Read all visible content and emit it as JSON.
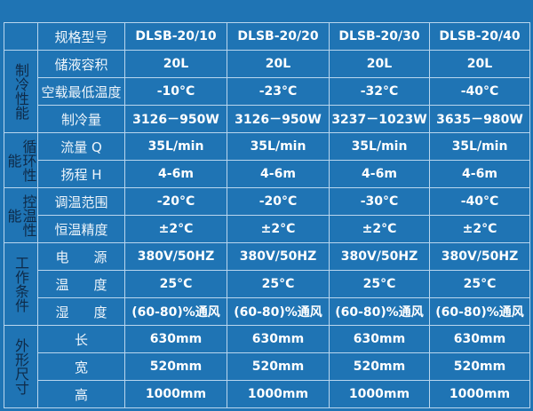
{
  "header": {
    "label": "规格型号",
    "models": [
      "DLSB-20/10",
      "DLSB-20/20",
      "DLSB-20/30",
      "DLSB-20/40"
    ]
  },
  "groups": [
    {
      "name": "制冷性能",
      "rows": [
        {
          "label": "储液容积",
          "values": [
            "20L",
            "20L",
            "20L",
            "20L"
          ]
        },
        {
          "label": "空载最低温度",
          "values": [
            "-10°C",
            "-23°C",
            "-32°C",
            "-40°C"
          ]
        },
        {
          "label": "制冷量",
          "values": [
            "3126－950W",
            "3126－950W",
            "3237－1023W",
            "3635－980W"
          ]
        }
      ]
    },
    {
      "name": "循环性能",
      "rows": [
        {
          "label": "流量 Q",
          "values": [
            "35L/min",
            "35L/min",
            "35L/min",
            "35L/min"
          ]
        },
        {
          "label": "扬程 H",
          "values": [
            "4-6m",
            "4-6m",
            "4-6m",
            "4-6m"
          ]
        }
      ]
    },
    {
      "name": "控温性能",
      "rows": [
        {
          "label": "调温范围",
          "values": [
            "-20°C",
            "-20°C",
            "-30°C",
            "-40°C"
          ]
        },
        {
          "label": "恒温精度",
          "values": [
            "±2°C",
            "±2°C",
            "±2°C",
            "±2°C"
          ]
        }
      ]
    },
    {
      "name": "工作条件",
      "rows": [
        {
          "label": "电源",
          "values": [
            "380V/50HZ",
            "380V/50HZ",
            "380V/50HZ",
            "380V/50HZ"
          ]
        },
        {
          "label": "温度",
          "values": [
            "25°C",
            "25°C",
            "25°C",
            "25°C"
          ]
        },
        {
          "label": "湿度",
          "values": [
            "(60-80)%通风",
            "(60-80)%通风",
            "(60-80)%通风",
            "(60-80)%通风"
          ]
        }
      ]
    },
    {
      "name": "外形尺寸",
      "rows": [
        {
          "label": "长",
          "values": [
            "630mm",
            "630mm",
            "630mm",
            "630mm"
          ]
        },
        {
          "label": "宽",
          "values": [
            "520mm",
            "520mm",
            "520mm",
            "520mm"
          ]
        },
        {
          "label": "高",
          "values": [
            "1000mm",
            "1000mm",
            "1000mm",
            "1000mm"
          ]
        }
      ]
    }
  ]
}
